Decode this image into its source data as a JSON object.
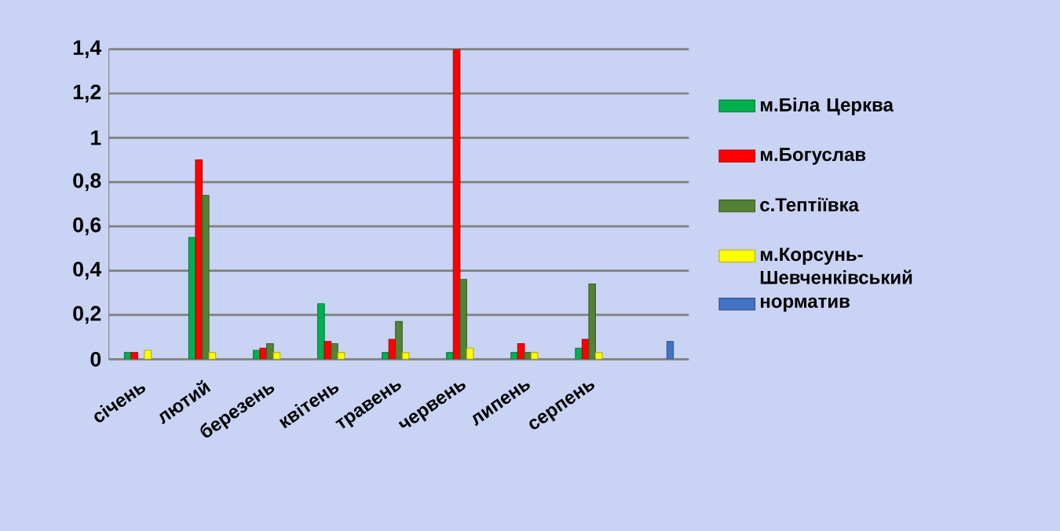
{
  "chart_data": {
    "type": "bar",
    "categories": [
      "січень",
      "лютий",
      "березень",
      "квітень",
      "травень",
      "червень",
      "липень",
      "серпень",
      null
    ],
    "series": [
      {
        "name": "м.Біла Церква",
        "color": "#00b050",
        "values": [
          0.03,
          0.55,
          0.04,
          0.25,
          0.03,
          0.03,
          0.03,
          0.05,
          null
        ]
      },
      {
        "name": "м.Богуслав",
        "color": "#ff0000",
        "values": [
          0.03,
          0.9,
          0.05,
          0.08,
          0.09,
          1.4,
          0.07,
          0.09,
          null
        ]
      },
      {
        "name": "с.Тептіївка",
        "color": "#548235",
        "values": [
          null,
          0.74,
          0.07,
          0.07,
          0.17,
          0.36,
          0.03,
          0.34,
          null
        ]
      },
      {
        "name": "м.Корсунь-Шевченківський",
        "color": "#ffff00",
        "values": [
          0.04,
          0.03,
          0.03,
          0.03,
          0.03,
          0.05,
          0.03,
          0.03,
          null
        ]
      },
      {
        "name": "норматив",
        "color": "#4472c4",
        "values": [
          null,
          null,
          null,
          null,
          null,
          null,
          null,
          null,
          0.08
        ]
      }
    ],
    "ylim": [
      0,
      1.4
    ],
    "yticks": [
      0,
      {
        "value": 0.2,
        "label": "0,2"
      },
      {
        "value": 0.4,
        "label": "0,4"
      },
      {
        "value": 0.6,
        "label": "0,6"
      },
      {
        "value": 0.8,
        "label": "0,8"
      },
      {
        "value": 1,
        "label": "1"
      },
      {
        "value": 1.2,
        "label": "1,2"
      },
      {
        "value": 1.4,
        "label": "1,4"
      }
    ],
    "grid": "y",
    "legend": "right"
  }
}
